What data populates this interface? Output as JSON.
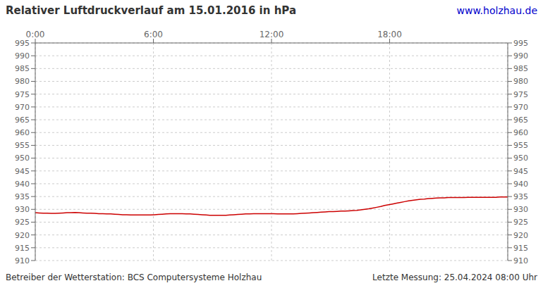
{
  "chart_data": {
    "type": "line",
    "title": "Relativer Luftdruckverlauf am 15.01.2016 in hPa",
    "annotations": [
      {
        "text": "www.holzhau.de",
        "color": "#0000cc"
      },
      {
        "text": "Betreiber der Wetterstation: BCS Computersysteme Holzhau"
      },
      {
        "text": "Letzte Messung: 25.04.2024 08:00 Uhr"
      }
    ],
    "color": "#cc0000",
    "grid": true,
    "xlim": [
      0,
      24
    ],
    "xticks": [
      {
        "value": 0,
        "label": "0:00"
      },
      {
        "value": 6,
        "label": "6:00"
      },
      {
        "value": 12,
        "label": "12:00"
      },
      {
        "value": 18,
        "label": "18:00"
      }
    ],
    "ylim": [
      910,
      995
    ],
    "yticks": [
      910,
      915,
      920,
      925,
      930,
      935,
      940,
      945,
      950,
      955,
      960,
      965,
      970,
      975,
      980,
      985,
      990,
      995
    ],
    "y2lim": [
      910,
      995
    ],
    "y2ticks": [
      910,
      915,
      920,
      925,
      930,
      935,
      940,
      945,
      950,
      955,
      960,
      965,
      970,
      975,
      980,
      985,
      990,
      995
    ],
    "x": [
      0,
      0.2017,
      0.4034,
      0.605,
      0.8067,
      1.0084,
      1.2101,
      1.4118,
      1.6134,
      1.8151,
      2.0168,
      2.2185,
      2.4202,
      2.6218,
      2.8235,
      3.0252,
      3.2269,
      3.4286,
      3.6303,
      3.8319,
      4.0336,
      4.2353,
      4.437,
      4.6387,
      4.8403,
      5.042,
      5.2437,
      5.4454,
      5.6471,
      5.8487,
      6.0504,
      6.2521,
      6.4538,
      6.6555,
      6.8571,
      7.0588,
      7.2605,
      7.4622,
      7.6639,
      7.8655,
      8.0672,
      8.2689,
      8.4706,
      8.6723,
      8.8739,
      9.0756,
      9.2773,
      9.479,
      9.6807,
      9.8824,
      10.084,
      10.2857,
      10.4874,
      10.6891,
      10.8908,
      11.0924,
      11.2941,
      11.4958,
      11.6975,
      11.8992,
      12.1008,
      12.3025,
      12.5042,
      12.7059,
      12.9076,
      13.1092,
      13.3109,
      13.5126,
      13.7143,
      13.916,
      14.1176,
      14.3193,
      14.521,
      14.7227,
      14.9244,
      15.1261,
      15.3277,
      15.5294,
      15.7311,
      15.9328,
      16.1345,
      16.3361,
      16.5378,
      16.7395,
      16.9412,
      17.1429,
      17.3445,
      17.5462,
      17.7479,
      17.9496,
      18.1513,
      18.3529,
      18.5546,
      18.7563,
      18.958,
      19.1597,
      19.3613,
      19.563,
      19.7647,
      19.9664,
      20.1681,
      20.3697,
      20.5714,
      20.7731,
      20.9748,
      21.1765,
      21.3782,
      21.5798,
      21.7815,
      21.9832,
      22.1849,
      22.3866,
      22.5882,
      22.7899,
      22.9916,
      23.1933,
      23.395,
      23.5966,
      23.7983,
      24
    ],
    "values": [
      928.7,
      928.6,
      928.5,
      928.5,
      928.4,
      928.4,
      928.5,
      928.6,
      928.7,
      928.7,
      928.8,
      928.7,
      928.6,
      928.5,
      928.5,
      928.4,
      928.3,
      928.3,
      928.2,
      928.2,
      928.1,
      928.0,
      927.9,
      927.9,
      927.8,
      927.8,
      927.8,
      927.8,
      927.8,
      927.8,
      927.9,
      928.0,
      928.1,
      928.2,
      928.3,
      928.3,
      928.3,
      928.3,
      928.2,
      928.2,
      928.1,
      928.0,
      927.9,
      927.8,
      927.7,
      927.7,
      927.7,
      927.7,
      927.7,
      927.8,
      927.9,
      928.0,
      928.1,
      928.2,
      928.2,
      928.3,
      928.3,
      928.3,
      928.3,
      928.3,
      928.3,
      928.2,
      928.2,
      928.2,
      928.2,
      928.2,
      928.3,
      928.4,
      928.5,
      928.6,
      928.7,
      928.8,
      928.9,
      929.0,
      929.1,
      929.1,
      929.2,
      929.3,
      929.3,
      929.4,
      929.5,
      929.6,
      929.8,
      930.0,
      930.2,
      930.5,
      930.8,
      931.1,
      931.5,
      931.8,
      932.1,
      932.4,
      932.7,
      933.0,
      933.3,
      933.5,
      933.7,
      933.9,
      934.0,
      934.2,
      934.3,
      934.4,
      934.5,
      934.5,
      934.6,
      934.6,
      934.6,
      934.6,
      934.6,
      934.7,
      934.7,
      934.7,
      934.7,
      934.7,
      934.7,
      934.7,
      934.7,
      934.8,
      934.8,
      934.8
    ]
  }
}
